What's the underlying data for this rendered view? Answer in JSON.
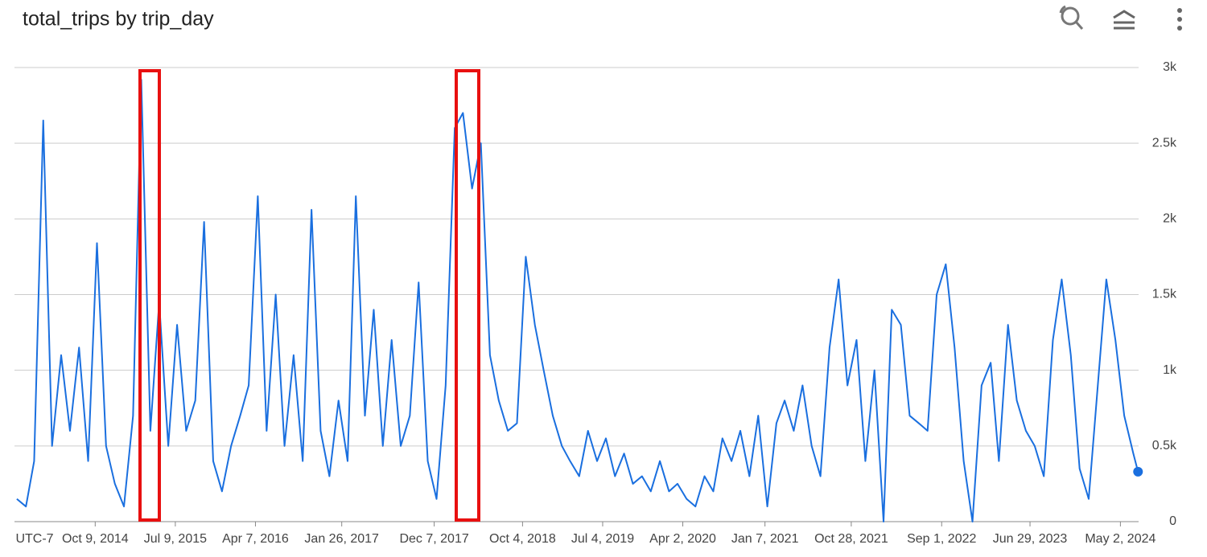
{
  "chart_data": {
    "type": "line",
    "title": "total_trips by trip_day",
    "timezone_label": "UTC-7",
    "x": [
      "2014-01-15",
      "2014-02-15",
      "2014-03-15",
      "2014-04-15",
      "2014-05-15",
      "2014-06-15",
      "2014-07-15",
      "2014-08-15",
      "2014-09-15",
      "2014-10-15",
      "2014-11-15",
      "2014-12-15",
      "2015-01-15",
      "2015-02-15",
      "2015-03-15",
      "2015-04-15",
      "2015-05-15",
      "2015-06-15",
      "2015-07-15",
      "2015-08-15",
      "2015-09-15",
      "2015-10-15",
      "2015-11-15",
      "2015-12-15",
      "2016-01-15",
      "2016-02-15",
      "2016-03-15",
      "2016-04-15",
      "2016-05-15",
      "2016-06-15",
      "2016-07-15",
      "2016-08-15",
      "2016-09-15",
      "2016-10-15",
      "2016-11-15",
      "2016-12-15",
      "2017-01-15",
      "2017-02-15",
      "2017-03-15",
      "2017-04-15",
      "2017-05-15",
      "2017-06-15",
      "2017-07-15",
      "2017-08-15",
      "2017-09-15",
      "2017-10-15",
      "2017-11-15",
      "2017-12-15",
      "2018-01-15",
      "2018-02-15",
      "2018-03-15",
      "2018-04-15",
      "2018-05-15",
      "2018-06-15",
      "2018-07-15",
      "2018-08-15",
      "2018-09-15",
      "2018-10-15",
      "2018-11-15",
      "2018-12-15",
      "2019-01-15",
      "2019-02-15",
      "2019-03-15",
      "2019-04-15",
      "2019-05-15",
      "2019-06-15",
      "2019-07-15",
      "2019-08-15",
      "2019-09-15",
      "2019-10-15",
      "2019-11-15",
      "2019-12-15",
      "2020-01-15",
      "2020-02-15",
      "2020-03-15",
      "2020-04-15",
      "2020-05-15",
      "2020-06-15",
      "2020-07-15",
      "2020-08-15",
      "2020-09-15",
      "2020-10-15",
      "2020-11-15",
      "2020-12-15",
      "2021-01-15",
      "2021-02-15",
      "2021-03-15",
      "2021-04-15",
      "2021-05-15",
      "2021-06-15",
      "2021-07-15",
      "2021-08-15",
      "2021-09-15",
      "2021-10-15",
      "2021-11-15",
      "2021-12-15",
      "2022-01-15",
      "2022-02-15",
      "2022-03-15",
      "2022-04-15",
      "2022-05-15",
      "2022-06-15",
      "2022-07-15",
      "2022-08-15",
      "2022-09-15",
      "2022-10-15",
      "2022-11-15",
      "2022-12-15",
      "2023-01-15",
      "2023-02-15",
      "2023-03-15",
      "2023-04-15",
      "2023-05-15",
      "2023-06-15",
      "2023-07-15",
      "2023-08-15",
      "2023-09-15",
      "2023-10-15",
      "2023-11-15",
      "2023-12-15",
      "2024-01-15",
      "2024-02-15",
      "2024-03-15",
      "2024-04-15",
      "2024-05-15",
      "2024-06-15",
      "2024-07-01"
    ],
    "series": [
      {
        "color": "#1a6fdf",
        "values": [
          150,
          100,
          400,
          2650,
          500,
          1100,
          600,
          1150,
          400,
          1840,
          500,
          250,
          100,
          700,
          2920,
          600,
          1450,
          500,
          1300,
          600,
          800,
          1980,
          400,
          200,
          500,
          700,
          900,
          2150,
          600,
          1500,
          500,
          1100,
          400,
          2060,
          600,
          300,
          800,
          400,
          2150,
          700,
          1400,
          500,
          1200,
          500,
          700,
          1580,
          400,
          150,
          900,
          2600,
          2700,
          2200,
          2500,
          1100,
          800,
          600,
          650,
          1750,
          1300,
          1000,
          700,
          500,
          400,
          300,
          600,
          400,
          550,
          300,
          450,
          250,
          300,
          200,
          400,
          200,
          250,
          150,
          100,
          300,
          200,
          550,
          400,
          600,
          300,
          700,
          100,
          650,
          800,
          600,
          900,
          500,
          300,
          1150,
          1600,
          900,
          1200,
          400,
          1000,
          0,
          1400,
          1300,
          700,
          650,
          600,
          1500,
          1700,
          1150,
          400,
          0,
          900,
          1050,
          400,
          1300,
          800,
          600,
          500,
          300,
          1200,
          1600,
          1100,
          350,
          150,
          900,
          1600,
          1200,
          700,
          450,
          330
        ]
      }
    ],
    "xlim": [
      "2014-01-07",
      "2024-07-03"
    ],
    "xticks": [
      {
        "value": "2014-10-09",
        "label": "Oct 9, 2014"
      },
      {
        "value": "2015-07-09",
        "label": "Jul 9, 2015"
      },
      {
        "value": "2016-04-07",
        "label": "Apr 7, 2016"
      },
      {
        "value": "2017-01-26",
        "label": "Jan 26, 2017"
      },
      {
        "value": "2017-12-07",
        "label": "Dec 7, 2017"
      },
      {
        "value": "2018-10-04",
        "label": "Oct 4, 2018"
      },
      {
        "value": "2019-07-04",
        "label": "Jul 4, 2019"
      },
      {
        "value": "2020-04-02",
        "label": "Apr 2, 2020"
      },
      {
        "value": "2021-01-07",
        "label": "Jan 7, 2021"
      },
      {
        "value": "2021-10-28",
        "label": "Oct 28, 2021"
      },
      {
        "value": "2022-09-01",
        "label": "Sep 1, 2022"
      },
      {
        "value": "2023-06-29",
        "label": "Jun 29, 2023"
      },
      {
        "value": "2024-05-02",
        "label": "May 2, 2024"
      }
    ],
    "ylim": [
      0,
      3000
    ],
    "yticks": [
      0,
      {
        "value": 500,
        "label": "0.5k"
      },
      {
        "value": 1000,
        "label": "1k"
      },
      {
        "value": 1500,
        "label": "1.5k"
      },
      {
        "value": 2000,
        "label": "2k"
      },
      {
        "value": 2500,
        "label": "2.5k"
      },
      {
        "value": 3000,
        "label": "3k"
      }
    ],
    "grid": true
  }
}
